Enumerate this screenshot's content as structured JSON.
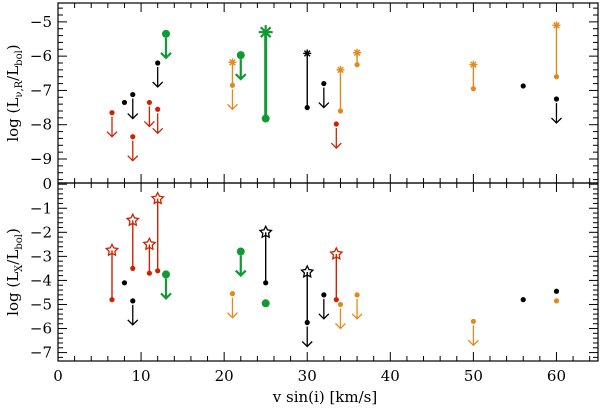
{
  "chart_data": {
    "type": "scatter",
    "description_layout": "two stacked panels sharing x axis",
    "xlabel": "v sin(i) [km/s]",
    "xlim": [
      0,
      65
    ],
    "xticks": [
      0,
      10,
      20,
      30,
      40,
      50,
      60
    ],
    "colors": {
      "red": "#cc2200",
      "black": "#000000",
      "green": "#119933",
      "orange": "#e08a1a"
    },
    "panels": [
      {
        "id": "radio",
        "ylabel_main": "log (L",
        "ylabel_sub": "ν,R",
        "ylabel_mid": "/L",
        "ylabel_sub2": "bol",
        "ylabel_end": ")",
        "ylim": [
          -9.7,
          -4.45
        ],
        "yticks": [
          -5,
          -6,
          -7,
          -8,
          -9
        ],
        "points": [
          {
            "x": 6.5,
            "y": -7.65,
            "color": "red",
            "kind": "limit_down"
          },
          {
            "x": 8.0,
            "y": -7.35,
            "color": "black",
            "kind": "dot"
          },
          {
            "x": 9.0,
            "y": -7.12,
            "color": "black",
            "kind": "limit_down"
          },
          {
            "x": 9.0,
            "y": -8.35,
            "color": "red",
            "kind": "limit_down"
          },
          {
            "x": 11.0,
            "y": -7.35,
            "color": "red",
            "kind": "limit_down"
          },
          {
            "x": 12.0,
            "y": -7.55,
            "color": "red",
            "kind": "limit_down"
          },
          {
            "x": 12.0,
            "y": -6.2,
            "color": "black",
            "kind": "limit_down"
          },
          {
            "x": 13.0,
            "y": -5.35,
            "color": "green",
            "kind": "limit_down"
          },
          {
            "x": 21.0,
            "y": -6.85,
            "color": "orange",
            "kind": "limit_down"
          },
          {
            "x": 22.0,
            "y": -5.97,
            "color": "green",
            "kind": "limit_down"
          },
          {
            "x": 30.0,
            "y": -7.5,
            "color": "black",
            "kind": "dot"
          },
          {
            "x": 32.0,
            "y": -6.8,
            "color": "black",
            "kind": "limit_down"
          },
          {
            "x": 33.5,
            "y": -7.98,
            "color": "red",
            "kind": "limit_down"
          },
          {
            "x": 34.0,
            "y": -7.6,
            "color": "orange",
            "kind": "dot"
          },
          {
            "x": 36.0,
            "y": -6.25,
            "color": "orange",
            "kind": "dot"
          },
          {
            "x": 50.0,
            "y": -6.95,
            "color": "orange",
            "kind": "dot"
          },
          {
            "x": 56.0,
            "y": -6.87,
            "color": "black",
            "kind": "dot"
          },
          {
            "x": 60.0,
            "y": -7.25,
            "color": "black",
            "kind": "limit_down"
          },
          {
            "x": 60.0,
            "y": -6.6,
            "color": "orange",
            "kind": "dot"
          },
          {
            "x": 25.0,
            "y": -7.82,
            "color": "green",
            "kind": "dot"
          }
        ],
        "flares": [
          {
            "x": 21.0,
            "y_low": -6.85,
            "y_high": -6.18,
            "color": "orange"
          },
          {
            "x": 25.0,
            "y_low": -7.82,
            "y_high": -5.3,
            "color": "green",
            "big": true
          },
          {
            "x": 30.0,
            "y_low": -7.5,
            "y_high": -5.92,
            "color": "black"
          },
          {
            "x": 34.0,
            "y_low": -7.6,
            "y_high": -6.4,
            "color": "orange"
          },
          {
            "x": 36.0,
            "y_low": -6.25,
            "y_high": -5.9,
            "color": "orange"
          },
          {
            "x": 50.0,
            "y_low": -6.95,
            "y_high": -6.25,
            "color": "orange"
          },
          {
            "x": 60.0,
            "y_low": -6.6,
            "y_high": -5.1,
            "color": "orange"
          }
        ]
      },
      {
        "id": "xray",
        "ylabel_main": "log (L",
        "ylabel_sub": "X",
        "ylabel_mid": "/L",
        "ylabel_sub2": "bol",
        "ylabel_end": ")",
        "ylim": [
          -7.35,
          0.05
        ],
        "yticks": [
          0,
          -1,
          -2,
          -3,
          -4,
          -5,
          -6,
          -7
        ],
        "points": [
          {
            "x": 6.5,
            "y": -4.8,
            "color": "red",
            "kind": "dot"
          },
          {
            "x": 8.0,
            "y": -4.1,
            "color": "black",
            "kind": "dot"
          },
          {
            "x": 9.0,
            "y": -4.85,
            "color": "black",
            "kind": "limit_down"
          },
          {
            "x": 9.0,
            "y": -3.5,
            "color": "red",
            "kind": "dot"
          },
          {
            "x": 11.0,
            "y": -3.7,
            "color": "red",
            "kind": "dot"
          },
          {
            "x": 12.0,
            "y": -3.6,
            "color": "red",
            "kind": "dot"
          },
          {
            "x": 13.0,
            "y": -3.75,
            "color": "green",
            "kind": "limit_down"
          },
          {
            "x": 21.0,
            "y": -4.55,
            "color": "orange",
            "kind": "limit_down"
          },
          {
            "x": 22.0,
            "y": -2.8,
            "color": "green",
            "kind": "limit_down"
          },
          {
            "x": 25.0,
            "y": -4.95,
            "color": "green",
            "kind": "dot"
          },
          {
            "x": 25.0,
            "y": -4.1,
            "color": "black",
            "kind": "dot"
          },
          {
            "x": 30.0,
            "y": -5.75,
            "color": "black",
            "kind": "limit_down"
          },
          {
            "x": 32.0,
            "y": -4.6,
            "color": "black",
            "kind": "limit_down"
          },
          {
            "x": 33.5,
            "y": -4.8,
            "color": "red",
            "kind": "dot"
          },
          {
            "x": 34.0,
            "y": -5.0,
            "color": "orange",
            "kind": "limit_down"
          },
          {
            "x": 36.0,
            "y": -4.6,
            "color": "orange",
            "kind": "limit_down"
          },
          {
            "x": 50.0,
            "y": -5.7,
            "color": "orange",
            "kind": "limit_down"
          },
          {
            "x": 56.0,
            "y": -4.8,
            "color": "black",
            "kind": "dot"
          },
          {
            "x": 60.0,
            "y": -4.45,
            "color": "black",
            "kind": "dot"
          },
          {
            "x": 60.0,
            "y": -4.85,
            "color": "orange",
            "kind": "dot"
          }
        ],
        "flares": [
          {
            "x": 6.5,
            "y_low": -4.8,
            "y_high": -2.75,
            "color": "red"
          },
          {
            "x": 9.0,
            "y_low": -3.5,
            "y_high": -1.5,
            "color": "red"
          },
          {
            "x": 11.0,
            "y_low": -3.7,
            "y_high": -2.5,
            "color": "red"
          },
          {
            "x": 12.0,
            "y_low": -3.6,
            "y_high": -0.6,
            "color": "red"
          },
          {
            "x": 25.0,
            "y_low": -4.1,
            "y_high": -2.0,
            "color": "black"
          },
          {
            "x": 30.0,
            "y_low": -5.75,
            "y_high": -3.65,
            "color": "black"
          },
          {
            "x": 33.5,
            "y_low": -4.8,
            "y_high": -2.9,
            "color": "red"
          }
        ]
      }
    ]
  }
}
